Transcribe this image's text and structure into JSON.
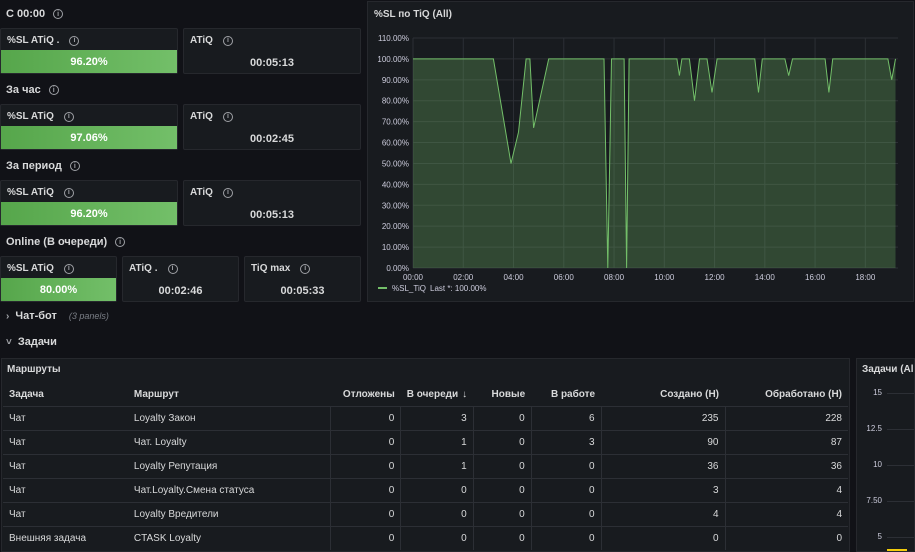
{
  "rows": {
    "c0000": "С 00:00",
    "hour": "За час",
    "period": "За период",
    "online": "Online (В очереди)"
  },
  "stats": {
    "sl_c0000": {
      "title": "%SL ATiQ .",
      "value": "96.20%"
    },
    "atiq_c0000": {
      "title": "ATiQ",
      "value": "00:05:13"
    },
    "sl_hour": {
      "title": "%SL ATiQ",
      "value": "97.06%"
    },
    "atiq_hour": {
      "title": "ATiQ",
      "value": "00:02:45"
    },
    "sl_period": {
      "title": "%SL ATiQ",
      "value": "96.20%"
    },
    "atiq_period": {
      "title": "ATiQ",
      "value": "00:05:13"
    },
    "sl_online": {
      "title": "%SL ATiQ",
      "value": "80.00%"
    },
    "atiq_online": {
      "title": "ATiQ .",
      "value": "00:02:46"
    },
    "tiq_max": {
      "title": "TiQ max",
      "value": "00:05:33"
    }
  },
  "chart_data": {
    "type": "line",
    "title": "%SL по TiQ (All)",
    "y_ticks": [
      "110.00%",
      "100.00%",
      "90.00%",
      "80.00%",
      "70.00%",
      "60.00%",
      "50.00%",
      "40.00%",
      "30.00%",
      "20.00%",
      "10.00%",
      "0.00%"
    ],
    "x_ticks": [
      "00:00",
      "02:00",
      "04:00",
      "06:00",
      "08:00",
      "10:00",
      "12:00",
      "14:00",
      "16:00",
      "18:00"
    ],
    "ylim": [
      0,
      110
    ],
    "xlim": [
      0,
      19.3
    ],
    "grid": true,
    "legend_placement": "bottom-left",
    "series": [
      {
        "name": "%SL_TiQ",
        "legend_text": "Last *: 100.00%",
        "color": "#73bf69",
        "points": [
          [
            0,
            100
          ],
          [
            3.2,
            100
          ],
          [
            3.9,
            50
          ],
          [
            4.2,
            65
          ],
          [
            4.5,
            100
          ],
          [
            4.65,
            100
          ],
          [
            4.8,
            67
          ],
          [
            5.4,
            100
          ],
          [
            7.6,
            100
          ],
          [
            7.75,
            0
          ],
          [
            7.9,
            100
          ],
          [
            8.4,
            100
          ],
          [
            8.5,
            0
          ],
          [
            8.6,
            100
          ],
          [
            10.5,
            100
          ],
          [
            10.6,
            92
          ],
          [
            10.7,
            100
          ],
          [
            11.0,
            100
          ],
          [
            11.2,
            80
          ],
          [
            11.4,
            100
          ],
          [
            11.7,
            100
          ],
          [
            11.9,
            84
          ],
          [
            12.1,
            100
          ],
          [
            13.6,
            100
          ],
          [
            13.75,
            84
          ],
          [
            13.9,
            100
          ],
          [
            14.8,
            100
          ],
          [
            14.95,
            92
          ],
          [
            15.1,
            100
          ],
          [
            16.4,
            100
          ],
          [
            16.55,
            84
          ],
          [
            16.7,
            100
          ],
          [
            18.9,
            100
          ],
          [
            19.05,
            90
          ],
          [
            19.2,
            100
          ]
        ]
      }
    ]
  },
  "collapsed_row": {
    "title": "Чат-бот",
    "subtitle": "(3 panels)"
  },
  "tasks_row": {
    "title": "Задачи"
  },
  "routes_table": {
    "title": "Маршруты",
    "headers": [
      "Задача",
      "Маршрут",
      "Отложены",
      "В очереди",
      "Новые",
      "В работе",
      "Создано (Н)",
      "Обработано (Н)"
    ],
    "sort_indicator": "↓",
    "rows": [
      [
        "Чат",
        "Loyalty Закон",
        "0",
        "3",
        "0",
        "6",
        "235",
        "228"
      ],
      [
        "Чат",
        "Чат. Loyalty",
        "0",
        "1",
        "0",
        "3",
        "90",
        "87"
      ],
      [
        "Чат",
        "Loyalty Репутация",
        "0",
        "1",
        "0",
        "0",
        "36",
        "36"
      ],
      [
        "Чат",
        "Чат.Loyalty.Смена статуса",
        "0",
        "0",
        "0",
        "0",
        "3",
        "4"
      ],
      [
        "Чат",
        "Loyalty Вредители",
        "0",
        "0",
        "0",
        "0",
        "4",
        "4"
      ],
      [
        "Внешняя задача",
        "CTASK Loyalty",
        "0",
        "0",
        "0",
        "0",
        "0",
        "0"
      ]
    ]
  },
  "tasks_chart": {
    "title": "Задачи (All",
    "y_ticks": [
      "15",
      "12.5",
      "10",
      "7.50",
      "5"
    ]
  }
}
